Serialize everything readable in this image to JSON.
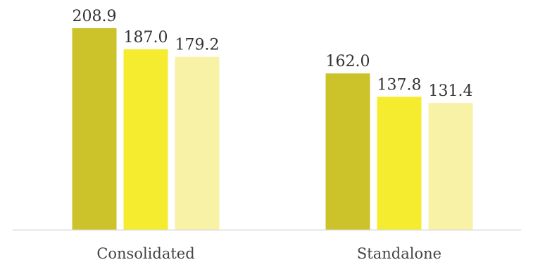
{
  "chart_data": {
    "type": "bar",
    "categories": [
      "Consolidated",
      "Standalone"
    ],
    "series": [
      {
        "values": [
          208.9,
          162.0
        ],
        "color": "#ccc22a"
      },
      {
        "values": [
          187.0,
          137.8
        ],
        "color": "#f6ec2f"
      },
      {
        "values": [
          179.2,
          131.4
        ],
        "color": "#f8f2a7"
      }
    ],
    "value_labels": [
      [
        "208.9",
        "162.0"
      ],
      [
        "187.0",
        "137.8"
      ],
      [
        "179.2",
        "131.4"
      ]
    ],
    "title": "",
    "xlabel": "",
    "ylabel": "",
    "ylim": [
      0,
      225
    ],
    "grid": false,
    "legend": "none",
    "axis_color": "#d9d9d9"
  }
}
